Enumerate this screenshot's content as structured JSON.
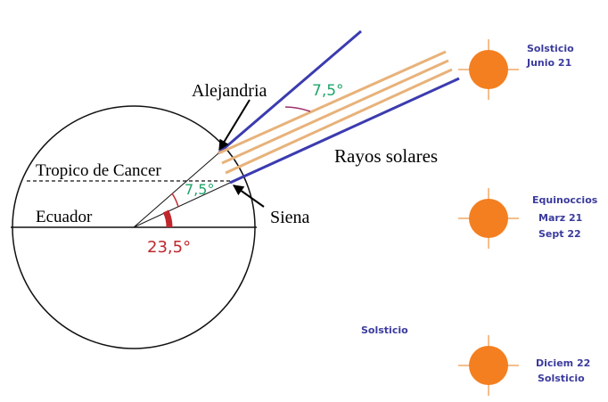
{
  "labels": {
    "alexandria": "Alejandria",
    "siena": "Siena",
    "tropic": "Tropico de Cancer",
    "equator": "Ecuador",
    "rays": "Rayos solares",
    "angle_top": "7,5°",
    "angle_mid": "7,5°",
    "angle_lat": "23,5°"
  },
  "suns": [
    {
      "lines": [
        "Solsticio",
        "Junio 21"
      ]
    },
    {
      "lines": [
        "Equinoccios",
        "Marz 21",
        "Sept 22"
      ]
    },
    {
      "lines": [
        "Diciem 22",
        "Solsticio"
      ]
    }
  ],
  "side_label": "Solsticio"
}
